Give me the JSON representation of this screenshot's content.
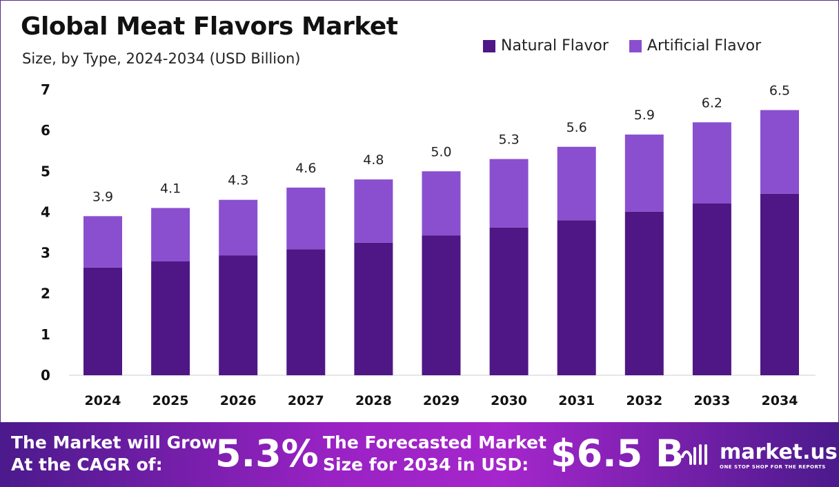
{
  "chart_data": {
    "type": "bar",
    "stacked": true,
    "title": "Global Meat Flavors Market",
    "subtitle": "Size, by Type, 2024-2034 (USD Billion)",
    "categories": [
      "2024",
      "2025",
      "2026",
      "2027",
      "2028",
      "2029",
      "2030",
      "2031",
      "2032",
      "2033",
      "2034"
    ],
    "series": [
      {
        "name": "Natural Flavor",
        "color": "#4f1785",
        "values": [
          2.64,
          2.79,
          2.94,
          3.09,
          3.25,
          3.43,
          3.62,
          3.8,
          4.01,
          4.21,
          4.45
        ]
      },
      {
        "name": "Artificial Flavor",
        "color": "#8a4fcf",
        "values": [
          1.26,
          1.31,
          1.36,
          1.51,
          1.55,
          1.57,
          1.68,
          1.8,
          1.89,
          1.99,
          2.05
        ]
      }
    ],
    "totals": [
      "3.9",
      "4.1",
      "4.3",
      "4.6",
      "4.8",
      "5.0",
      "5.3",
      "5.6",
      "5.9",
      "6.2",
      "6.5"
    ],
    "yticks": [
      "0",
      "1",
      "2",
      "3",
      "4",
      "5",
      "6",
      "7"
    ],
    "ylim": [
      0,
      7
    ],
    "grid": false,
    "legend_position": "top-right"
  },
  "footer": {
    "cagr_label_1": "The Market will Grow",
    "cagr_label_2": "At the CAGR of:",
    "cagr_value": "5.3%",
    "forecast_label_1": "The Forecasted Market",
    "forecast_label_2": "Size for 2034 in USD:",
    "forecast_value": "$6.5 B",
    "brand": "market.us",
    "brand_tagline": "ONE STOP SHOP FOR THE REPORTS"
  }
}
